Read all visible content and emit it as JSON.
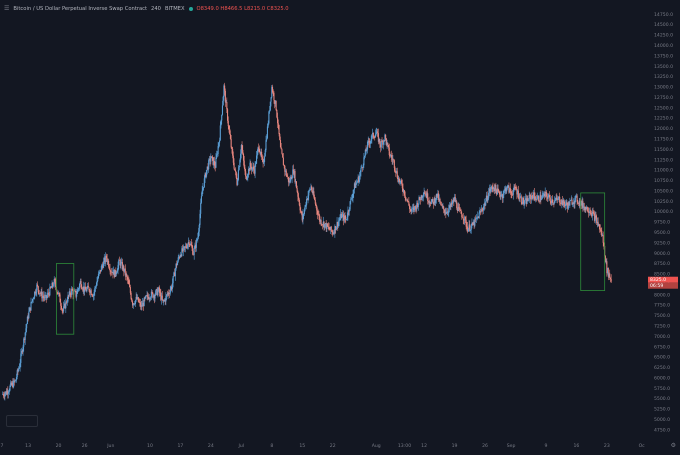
{
  "header": {
    "symbol": "Bitcoin / US Dollar Perpetual Inverse Swap Contract",
    "interval": "240",
    "exchange": "BITMEX",
    "ohlc": "O8349.0  H8466.5  L8215.0  C8325.0"
  },
  "price_tags": {
    "last_price": "8325.0",
    "countdown": "06:59"
  },
  "colors": {
    "background": "#131722",
    "bull": "#5b9fd6",
    "bear": "#e8867e",
    "box": "#2e8b3a",
    "axis_text": "#787b86",
    "price_tag": "#ef5350"
  },
  "chart_data": {
    "type": "candlestick",
    "y_ticks": [
      "14750.0",
      "14500.0",
      "14250.0",
      "14000.0",
      "13750.0",
      "13500.0",
      "13250.0",
      "13000.0",
      "12750.0",
      "12500.0",
      "12250.0",
      "12000.0",
      "11750.0",
      "11500.0",
      "11250.0",
      "11000.0",
      "10750.0",
      "10500.0",
      "10250.0",
      "10000.0",
      "9750.0",
      "9500.0",
      "9250.0",
      "9000.0",
      "8750.0",
      "8500.0",
      "8250.0",
      "8000.0",
      "7750.0",
      "7500.0",
      "7250.0",
      "7000.0",
      "6750.0",
      "6500.0",
      "6250.0",
      "6000.0",
      "5750.0",
      "5500.0",
      "5250.0",
      "5000.0",
      "4750.0"
    ],
    "ylim": [
      4600,
      14900
    ],
    "x_ticks": [
      "7",
      "13",
      "20",
      "26",
      "Jun",
      "10",
      "17",
      "24",
      "Jul",
      "8",
      "15",
      "22",
      "Aug",
      "13:00",
      "12",
      "19",
      "26",
      "Sep",
      "9",
      "16",
      "23",
      "Oc"
    ],
    "x_tick_days": [
      0,
      6,
      13,
      19,
      25,
      34,
      41,
      48,
      55,
      62,
      69,
      76,
      86,
      92.5,
      97,
      104,
      111,
      117,
      125,
      132,
      139,
      147
    ],
    "x_range_days": [
      0,
      148
    ],
    "price_path": [
      [
        0,
        5600
      ],
      [
        1,
        5650
      ],
      [
        2,
        5800
      ],
      [
        3,
        5900
      ],
      [
        4,
        6300
      ],
      [
        5,
        6900
      ],
      [
        6,
        7500
      ],
      [
        7,
        7900
      ],
      [
        8,
        8200
      ],
      [
        9,
        8000
      ],
      [
        10,
        7900
      ],
      [
        11,
        8100
      ],
      [
        12,
        8300
      ],
      [
        13,
        8000
      ],
      [
        14,
        7600
      ],
      [
        15,
        7900
      ],
      [
        16,
        8100
      ],
      [
        17,
        8000
      ],
      [
        18,
        8300
      ],
      [
        19,
        8100
      ],
      [
        20,
        8150
      ],
      [
        21,
        8000
      ],
      [
        22,
        8400
      ],
      [
        23,
        8700
      ],
      [
        24,
        8900
      ],
      [
        25,
        8600
      ],
      [
        26,
        8500
      ],
      [
        27,
        8800
      ],
      [
        28,
        8600
      ],
      [
        29,
        8300
      ],
      [
        30,
        7800
      ],
      [
        31,
        7900
      ],
      [
        32,
        7700
      ],
      [
        33,
        7900
      ],
      [
        34,
        8000
      ],
      [
        35,
        8000
      ],
      [
        36,
        8100
      ],
      [
        37,
        7800
      ],
      [
        38,
        8000
      ],
      [
        39,
        8200
      ],
      [
        40,
        8700
      ],
      [
        41,
        9000
      ],
      [
        42,
        9100
      ],
      [
        43,
        9300
      ],
      [
        44,
        9000
      ],
      [
        45,
        9400
      ],
      [
        46,
        10500
      ],
      [
        47,
        11000
      ],
      [
        48,
        11300
      ],
      [
        49,
        11100
      ],
      [
        50,
        11800
      ],
      [
        51,
        13000
      ],
      [
        52,
        12100
      ],
      [
        53,
        11300
      ],
      [
        54,
        10700
      ],
      [
        55,
        11600
      ],
      [
        56,
        10800
      ],
      [
        57,
        11100
      ],
      [
        58,
        11000
      ],
      [
        59,
        11600
      ],
      [
        60,
        11100
      ],
      [
        61,
        12000
      ],
      [
        62,
        13000
      ],
      [
        63,
        12500
      ],
      [
        64,
        11500
      ],
      [
        65,
        11000
      ],
      [
        66,
        10700
      ],
      [
        67,
        11000
      ],
      [
        68,
        10400
      ],
      [
        69,
        9800
      ],
      [
        70,
        10300
      ],
      [
        71,
        10600
      ],
      [
        72,
        10200
      ],
      [
        73,
        9800
      ],
      [
        74,
        9700
      ],
      [
        75,
        9600
      ],
      [
        76,
        9500
      ],
      [
        77,
        9700
      ],
      [
        78,
        9900
      ],
      [
        79,
        9800
      ],
      [
        80,
        10200
      ],
      [
        81,
        10600
      ],
      [
        82,
        10800
      ],
      [
        83,
        11200
      ],
      [
        84,
        11600
      ],
      [
        85,
        11800
      ],
      [
        86,
        11900
      ],
      [
        87,
        11600
      ],
      [
        88,
        11800
      ],
      [
        89,
        11400
      ],
      [
        90,
        11200
      ],
      [
        91,
        10800
      ],
      [
        92,
        10600
      ],
      [
        93,
        10300
      ],
      [
        94,
        10000
      ],
      [
        95,
        10100
      ],
      [
        96,
        10300
      ],
      [
        97,
        10500
      ],
      [
        98,
        10300
      ],
      [
        99,
        10200
      ],
      [
        100,
        10400
      ],
      [
        101,
        10100
      ],
      [
        102,
        10000
      ],
      [
        103,
        10100
      ],
      [
        104,
        10300
      ],
      [
        105,
        10000
      ],
      [
        106,
        9900
      ],
      [
        107,
        9600
      ],
      [
        108,
        9650
      ],
      [
        109,
        9800
      ],
      [
        110,
        10000
      ],
      [
        111,
        10200
      ],
      [
        112,
        10500
      ],
      [
        113,
        10600
      ],
      [
        114,
        10450
      ],
      [
        115,
        10400
      ],
      [
        116,
        10600
      ],
      [
        117,
        10450
      ],
      [
        118,
        10550
      ],
      [
        119,
        10350
      ],
      [
        120,
        10200
      ],
      [
        121,
        10300
      ],
      [
        122,
        10400
      ],
      [
        123,
        10300
      ],
      [
        124,
        10350
      ],
      [
        125,
        10400
      ],
      [
        126,
        10300
      ],
      [
        127,
        10250
      ],
      [
        128,
        10300
      ],
      [
        129,
        10200
      ],
      [
        130,
        10150
      ],
      [
        131,
        10250
      ],
      [
        132,
        10300
      ],
      [
        133,
        10200
      ],
      [
        134,
        10100
      ],
      [
        135,
        10050
      ],
      [
        136,
        9900
      ],
      [
        137,
        9700
      ],
      [
        138,
        9400
      ],
      [
        139,
        8600
      ],
      [
        140,
        8350
      ]
    ],
    "price_path_label": "approximate close path read from the chart",
    "boxes": [
      {
        "x_days": [
          12.5,
          16.5
        ],
        "y_price": [
          7050,
          8750
        ],
        "color": "#2e8b3a"
      },
      {
        "x_days": [
          133,
          138.5
        ],
        "y_price": [
          8100,
          10450
        ],
        "color": "#2e8b3a"
      }
    ],
    "last_price": 8325.0,
    "grid": false
  }
}
